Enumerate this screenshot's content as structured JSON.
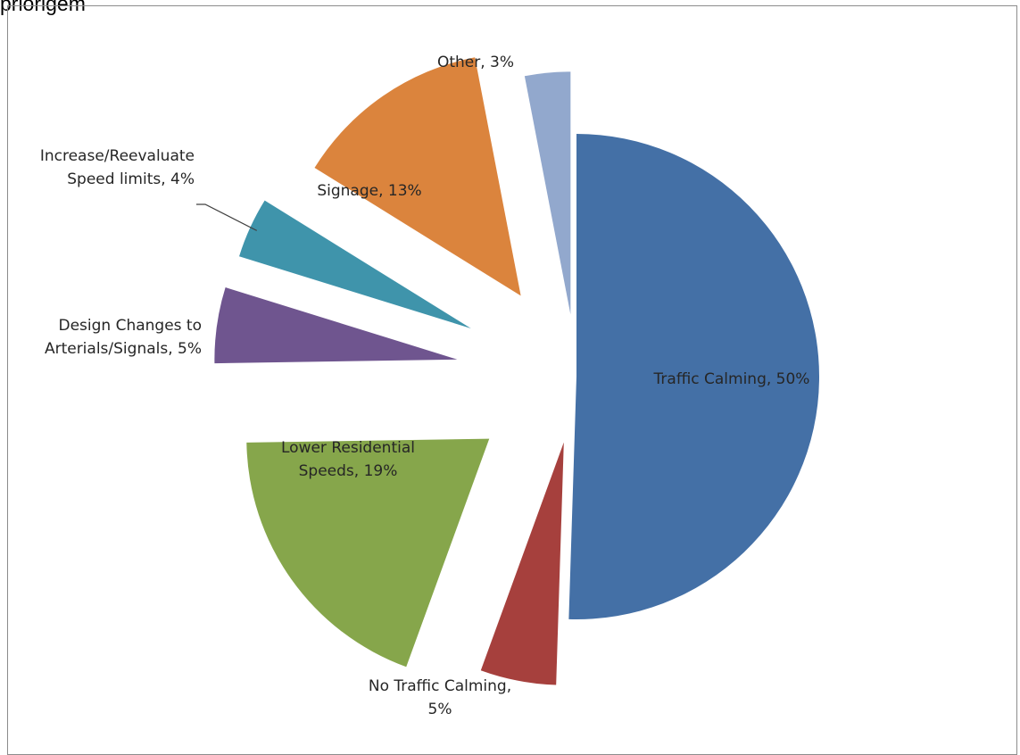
{
  "header": {
    "text": "priorigem"
  },
  "chart_data": {
    "type": "pie",
    "title": "",
    "slices": [
      {
        "name": "Traffic Calming",
        "value": 50,
        "color": "#4470a6",
        "label_lines": [
          "Traffic Calming, 50%"
        ]
      },
      {
        "name": "No Traffic Calming",
        "value": 5,
        "color": "#a6403d",
        "label_lines": [
          "No Traffic Calming,",
          "5%"
        ]
      },
      {
        "name": "Lower Residential Speeds",
        "value": 19,
        "color": "#86a64b",
        "label_lines": [
          "Lower Residential",
          "Speeds, 19%"
        ]
      },
      {
        "name": "Design Changes to Arterials/Signals",
        "value": 5,
        "color": "#6f558f",
        "label_lines": [
          "Design Changes to",
          "Arterials/Signals, 5%"
        ]
      },
      {
        "name": "Increase/Reevaluate Speed limits",
        "value": 4,
        "color": "#3f94ab",
        "label_lines": [
          "Increase/Reevaluate",
          "Speed limits, 4%"
        ]
      },
      {
        "name": "Signage",
        "value": 13,
        "color": "#db843d",
        "label_lines": [
          "Signage, 13%"
        ]
      },
      {
        "name": "Other",
        "value": 3,
        "color": "#92a8cd",
        "label_lines": [
          "Other, 3%"
        ]
      }
    ],
    "legend": "none"
  }
}
